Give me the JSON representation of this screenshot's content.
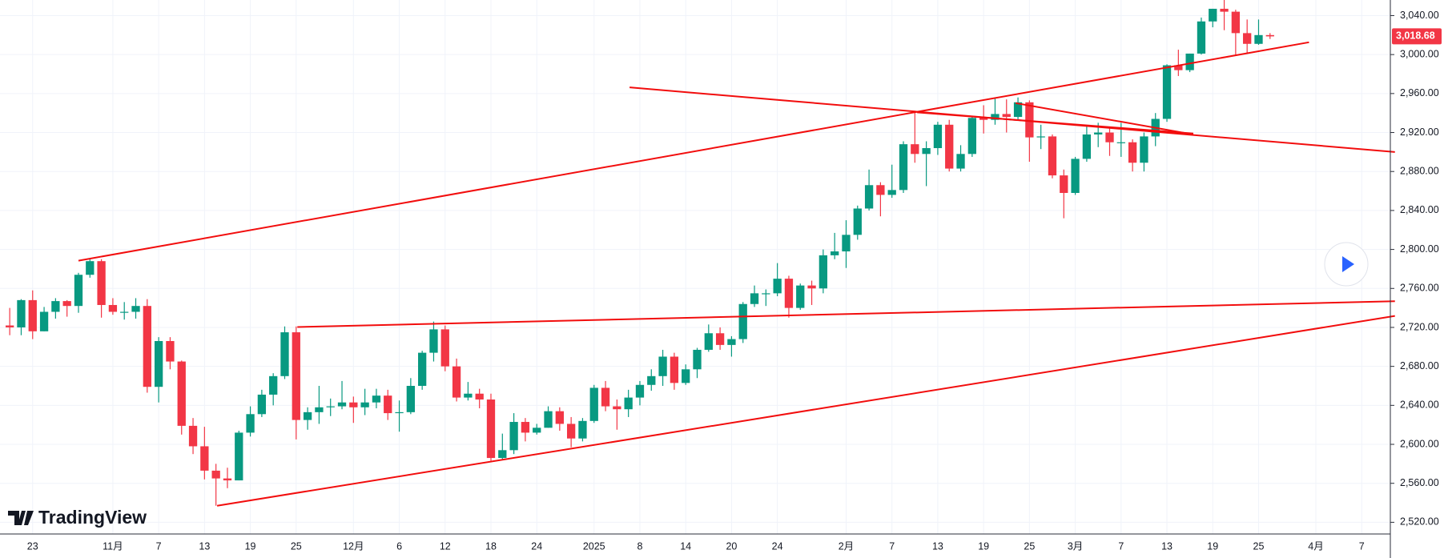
{
  "chart_data": {
    "type": "candlestick",
    "categories": [
      null,
      null,
      "23",
      null,
      null,
      null,
      null,
      null,
      null,
      "11月",
      null,
      null,
      null,
      "7",
      null,
      null,
      null,
      "13",
      null,
      null,
      null,
      "19",
      null,
      null,
      null,
      "25",
      null,
      null,
      null,
      null,
      "12月",
      null,
      null,
      null,
      "6",
      null,
      null,
      null,
      "12",
      null,
      null,
      null,
      "18",
      null,
      null,
      null,
      "24",
      null,
      null,
      null,
      null,
      "2025",
      null,
      null,
      null,
      "8",
      null,
      null,
      null,
      "14",
      null,
      null,
      null,
      "20",
      null,
      null,
      null,
      "24",
      null,
      null,
      null,
      null,
      null,
      "2月",
      null,
      null,
      null,
      "7",
      null,
      null,
      null,
      "13",
      null,
      null,
      null,
      "19",
      null,
      null,
      null,
      "25",
      null,
      null,
      null,
      "3月",
      null,
      null,
      null,
      "7",
      null,
      null,
      null,
      "13",
      null,
      null,
      null,
      "19",
      null,
      null,
      null,
      "25",
      null,
      null,
      null,
      null,
      "4月",
      null,
      null,
      null,
      "7",
      null,
      null
    ],
    "open": [
      2722,
      2720,
      2748,
      2716,
      2736,
      2747,
      2742,
      2774,
      2788,
      2743,
      2736,
      2736,
      2742,
      2659,
      2706,
      2685,
      2619,
      2598,
      2573,
      2565,
      2563,
      2612,
      2631,
      2651,
      2670,
      2715,
      2625,
      2633,
      2638,
      2639,
      2643,
      2638,
      2643,
      2650,
      2632,
      2633,
      2660,
      2694,
      2718,
      2680,
      2648,
      2652,
      2646,
      2586,
      2594,
      2623,
      2612,
      2617,
      2634,
      2621,
      2606,
      2624,
      2658,
      2639,
      2636,
      2648,
      2661,
      2670,
      2690,
      2663,
      2677,
      2697,
      2714,
      2702,
      2708,
      2744,
      2755,
      2755,
      2770,
      2740,
      2763,
      2760,
      2794,
      2798,
      2815,
      2842,
      2866,
      2856,
      2861,
      2908,
      2898,
      2904,
      2928,
      2883,
      2898,
      2935,
      2933,
      2939,
      2936,
      2951,
      2915,
      2916,
      2876,
      2858,
      2893,
      2918,
      2920,
      2910,
      2910,
      2889,
      2916,
      2934,
      2989,
      2984,
      3001,
      3034,
      3047,
      3044,
      3022,
      3011,
      3020,
      null,
      null,
      null,
      null,
      null,
      null,
      null,
      null,
      null,
      null
    ],
    "high": [
      2740,
      2749,
      2758,
      2741,
      2750,
      2748,
      2776,
      2790,
      2790,
      2750,
      2746,
      2750,
      2749,
      2710,
      2710,
      2686,
      2627,
      2618,
      2580,
      2576,
      2614,
      2639,
      2656,
      2673,
      2721,
      2721,
      2638,
      2660,
      2647,
      2665,
      2649,
      2657,
      2657,
      2656,
      2645,
      2668,
      2696,
      2726,
      2722,
      2688,
      2664,
      2657,
      2652,
      2611,
      2632,
      2627,
      2621,
      2639,
      2638,
      2628,
      2627,
      2661,
      2665,
      2646,
      2656,
      2665,
      2677,
      2697,
      2694,
      2682,
      2699,
      2723,
      2720,
      2711,
      2746,
      2763,
      2759,
      2786,
      2773,
      2765,
      2768,
      2800,
      2817,
      2830,
      2845,
      2882,
      2869,
      2887,
      2911,
      2942,
      2911,
      2931,
      2933,
      2907,
      2937,
      2948,
      2955,
      2954,
      2956,
      2953,
      2928,
      2918,
      2882,
      2895,
      2927,
      2930,
      2926,
      2930,
      2913,
      2920,
      2940,
      2990,
      3005,
      3001,
      3038,
      3047,
      3057,
      3046,
      3036,
      3036,
      3022,
      null,
      null,
      null,
      null,
      null,
      null,
      null,
      null,
      null,
      null
    ],
    "low": [
      2712,
      2712,
      2708,
      2716,
      2729,
      2731,
      2735,
      2771,
      2730,
      2733,
      2728,
      2729,
      2653,
      2643,
      2677,
      2610,
      2590,
      2564,
      2537,
      2555,
      2563,
      2608,
      2628,
      2640,
      2667,
      2605,
      2615,
      2621,
      2629,
      2636,
      2622,
      2630,
      2637,
      2625,
      2613,
      2631,
      2656,
      2685,
      2675,
      2644,
      2645,
      2637,
      2583,
      2584,
      2590,
      2603,
      2610,
      2617,
      2614,
      2597,
      2603,
      2622,
      2634,
      2615,
      2628,
      2640,
      2655,
      2660,
      2656,
      2661,
      2668,
      2695,
      2697,
      2690,
      2704,
      2741,
      2742,
      2752,
      2730,
      2738,
      2743,
      2755,
      2790,
      2781,
      2810,
      2840,
      2834,
      2853,
      2858,
      2889,
      2865,
      2897,
      2880,
      2880,
      2895,
      2919,
      2928,
      2920,
      2933,
      2890,
      2903,
      2873,
      2832,
      2856,
      2890,
      2905,
      2896,
      2895,
      2880,
      2880,
      2906,
      2931,
      2978,
      2982,
      3000,
      3028,
      3025,
      2999,
      3001,
      3010,
      3016,
      null,
      null,
      null,
      null,
      null,
      null,
      null,
      null,
      null,
      null
    ],
    "close": [
      2720,
      2748,
      2716,
      2736,
      2747,
      2742,
      2774,
      2788,
      2743,
      2736,
      2736,
      2742,
      2659,
      2706,
      2685,
      2619,
      2598,
      2573,
      2565,
      2563,
      2612,
      2631,
      2651,
      2670,
      2715,
      2625,
      2633,
      2638,
      2639,
      2643,
      2638,
      2643,
      2650,
      2632,
      2633,
      2660,
      2694,
      2718,
      2680,
      2648,
      2652,
      2646,
      2586,
      2594,
      2623,
      2612,
      2617,
      2634,
      2621,
      2606,
      2624,
      2658,
      2639,
      2636,
      2648,
      2661,
      2670,
      2690,
      2663,
      2677,
      2697,
      2714,
      2702,
      2708,
      2744,
      2755,
      2755,
      2770,
      2740,
      2763,
      2760,
      2794,
      2798,
      2815,
      2842,
      2866,
      2856,
      2861,
      2908,
      2898,
      2904,
      2928,
      2883,
      2898,
      2935,
      2933,
      2939,
      2936,
      2951,
      2915,
      2916,
      2876,
      2858,
      2893,
      2918,
      2920,
      2910,
      2910,
      2889,
      2916,
      2934,
      2989,
      2984,
      3001,
      3034,
      3047,
      3044,
      3022,
      3011,
      3020,
      3018.68,
      null,
      null,
      null,
      null,
      null,
      null,
      null,
      null,
      null,
      null
    ],
    "up_color": "#089981",
    "down_color": "#f23645",
    "ylim": [
      2508,
      3056
    ],
    "yticks": [
      {
        "value": 2520,
        "label": "2,520.00"
      },
      {
        "value": 2560,
        "label": "2,560.00"
      },
      {
        "value": 2600,
        "label": "2,600.00"
      },
      {
        "value": 2640,
        "label": "2,640.00"
      },
      {
        "value": 2680,
        "label": "2,680.00"
      },
      {
        "value": 2720,
        "label": "2,720.00"
      },
      {
        "value": 2760,
        "label": "2,760.00"
      },
      {
        "value": 2800,
        "label": "2,800.00"
      },
      {
        "value": 2840,
        "label": "2,840.00"
      },
      {
        "value": 2880,
        "label": "2,880.00"
      },
      {
        "value": 2920,
        "label": "2,920.00"
      },
      {
        "value": 2960,
        "label": "2,960.00"
      },
      {
        "value": 3000,
        "label": "3,000.00"
      },
      {
        "value": 3040,
        "label": "3,040.00"
      }
    ],
    "grid": true,
    "trendline_color": "#f20d0d",
    "trendlines": [
      {
        "x": [
          6,
          113.4
        ],
        "y": [
          2788.5,
          3012.6
        ]
      },
      {
        "x": [
          54.1,
          120.9
        ],
        "y": [
          2966.3,
          2900
        ]
      },
      {
        "x": [
          79.2,
          103.3
        ],
        "y": [
          2940.7,
          2919
        ]
      },
      {
        "x": [
          87.8,
          103.3
        ],
        "y": [
          2950.2,
          2918
        ]
      },
      {
        "x": [
          25.1,
          120.9
        ],
        "y": [
          2720.4,
          2746.9
        ]
      },
      {
        "x": [
          18.1,
          120.9
        ],
        "y": [
          2537,
          2731.8
        ]
      }
    ],
    "last_price": {
      "value": 3018.68,
      "label": "3,018.68"
    }
  },
  "logo": "TradingView"
}
